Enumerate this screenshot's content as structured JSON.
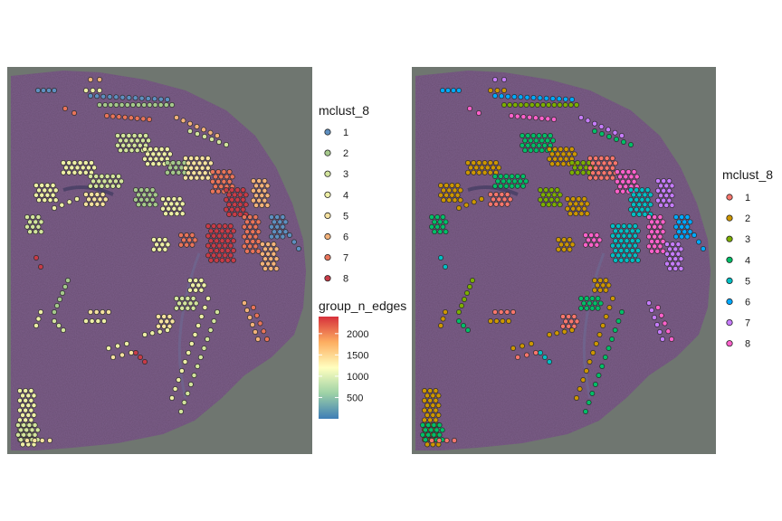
{
  "chart_data": [
    {
      "type": "scatter",
      "panel": "left",
      "background": "histology tissue section",
      "legends": [
        {
          "title": "mclust_8",
          "kind": "discrete",
          "entries": [
            "1",
            "2",
            "3",
            "4",
            "5",
            "6",
            "7",
            "8"
          ],
          "colors": [
            "#5E8FC0",
            "#A6C98C",
            "#D3E49D",
            "#EEEFA6",
            "#F6E2A0",
            "#F3B27A",
            "#E9745A",
            "#C83B47"
          ]
        },
        {
          "title": "group_n_edges",
          "kind": "continuous",
          "range": [
            0,
            2400
          ],
          "ticks": [
            500,
            1000,
            1500,
            2000
          ],
          "tick_labels": [
            "500",
            "1000",
            "1500",
            "2000"
          ],
          "colors": [
            "#3E7DB6",
            "#9ED2A6",
            "#FFFFBF",
            "#FDAE61",
            "#D7303B"
          ]
        }
      ]
    },
    {
      "type": "scatter",
      "panel": "right",
      "background": "histology tissue section",
      "legends": [
        {
          "title": "mclust_8",
          "kind": "discrete",
          "entries": [
            "1",
            "2",
            "3",
            "4",
            "5",
            "6",
            "7",
            "8"
          ],
          "colors": [
            "#F8766D",
            "#CD9600",
            "#7CAE00",
            "#00BE67",
            "#00BFC4",
            "#00A9FF",
            "#C77CFF",
            "#FF61CC"
          ]
        }
      ]
    }
  ]
}
